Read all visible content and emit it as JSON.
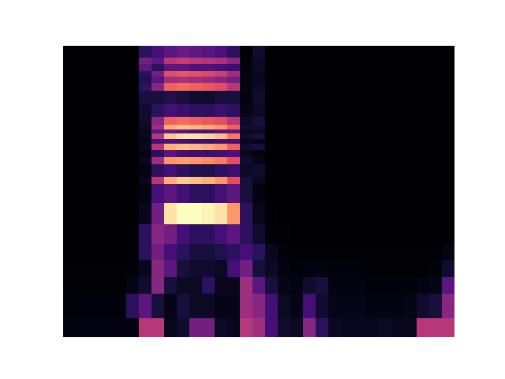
{
  "chart_data": {
    "type": "heatmap",
    "log": "y",
    "tick_labels": false,
    "xlim": [
      0,
      31
    ],
    "ylim": [
      1,
      440
    ],
    "y_edges": [
      1,
      1.5,
      2.5,
      3.5,
      5,
      7,
      10.5,
      16.5,
      24.5,
      28.5,
      37,
      43,
      50,
      57,
      63,
      70,
      76,
      84,
      100,
      130,
      170,
      200,
      230,
      260,
      300,
      340,
      440
    ],
    "cells": [
      [
        3,
        3,
        3,
        3,
        3,
        3,
        45,
        45,
        5,
        8,
        30,
        30,
        6,
        5,
        45,
        40,
        20,
        8,
        6,
        35,
        15,
        6,
        5,
        5,
        5,
        6,
        5,
        5,
        45,
        45,
        45
      ],
      [
        2,
        2,
        2,
        2,
        2,
        15,
        25,
        10,
        4,
        10,
        6,
        6,
        4,
        4,
        40,
        35,
        20,
        6,
        4,
        20,
        8,
        4,
        4,
        4,
        3,
        3,
        3,
        4,
        8,
        10,
        35
      ],
      [
        1,
        1,
        1,
        1,
        1,
        4,
        8,
        35,
        10,
        6,
        6,
        15,
        5,
        5,
        40,
        25,
        10,
        4,
        3,
        8,
        10,
        3,
        3,
        3,
        2,
        2,
        2,
        2,
        3,
        4,
        25
      ],
      [
        1,
        1,
        1,
        1,
        1,
        2,
        5,
        35,
        25,
        10,
        8,
        8,
        6,
        20,
        30,
        10,
        6,
        3,
        2,
        3,
        3,
        2,
        2,
        2,
        1,
        1,
        1,
        1,
        1,
        2,
        8
      ],
      [
        0,
        0,
        0,
        0,
        0,
        1,
        15,
        30,
        20,
        15,
        10,
        10,
        12,
        15,
        20,
        15,
        5,
        2,
        1,
        1,
        1,
        1,
        1,
        1,
        1,
        1,
        1,
        1,
        1,
        1,
        3
      ],
      [
        0,
        0,
        0,
        0,
        0,
        1,
        15,
        35,
        30,
        20,
        15,
        15,
        20,
        25,
        15,
        8,
        2,
        1,
        0,
        0,
        0,
        0,
        0,
        0,
        0,
        0,
        0,
        0,
        0,
        0,
        0
      ],
      [
        0,
        0,
        0,
        0,
        0,
        0,
        5,
        30,
        85,
        90,
        90,
        88,
        85,
        70,
        15,
        5,
        1,
        0,
        0,
        0,
        0,
        0,
        0,
        0,
        0,
        0,
        0,
        0,
        0,
        0,
        0
      ],
      [
        0,
        0,
        0,
        0,
        0,
        0,
        3,
        20,
        25,
        20,
        15,
        15,
        20,
        25,
        10,
        3,
        0,
        0,
        0,
        0,
        0,
        0,
        0,
        0,
        0,
        0,
        0,
        0,
        0,
        0,
        0
      ],
      [
        0,
        0,
        0,
        0,
        0,
        0,
        5,
        45,
        75,
        80,
        78,
        75,
        70,
        55,
        10,
        5,
        0,
        0,
        0,
        0,
        0,
        0,
        0,
        0,
        0,
        0,
        0,
        0,
        0,
        0,
        0
      ],
      [
        0,
        0,
        0,
        0,
        0,
        0,
        3,
        15,
        20,
        15,
        12,
        12,
        15,
        18,
        6,
        8,
        0,
        0,
        0,
        0,
        0,
        0,
        0,
        0,
        0,
        0,
        0,
        0,
        0,
        0,
        0
      ],
      [
        0,
        0,
        0,
        0,
        0,
        0,
        5,
        40,
        70,
        72,
        70,
        68,
        65,
        55,
        8,
        4,
        0,
        0,
        0,
        0,
        0,
        0,
        0,
        0,
        0,
        0,
        0,
        0,
        0,
        0,
        0
      ],
      [
        0,
        0,
        0,
        0,
        0,
        0,
        3,
        15,
        25,
        20,
        18,
        18,
        20,
        22,
        5,
        3,
        0,
        0,
        0,
        0,
        0,
        0,
        0,
        0,
        0,
        0,
        0,
        0,
        0,
        0,
        0
      ],
      [
        0,
        0,
        0,
        0,
        0,
        0,
        5,
        45,
        75,
        78,
        76,
        74,
        70,
        60,
        8,
        10,
        0,
        0,
        0,
        0,
        0,
        0,
        0,
        0,
        0,
        0,
        0,
        0,
        0,
        0,
        0
      ],
      [
        0,
        0,
        0,
        0,
        0,
        0,
        4,
        20,
        22,
        20,
        18,
        18,
        20,
        20,
        5,
        4,
        0,
        0,
        0,
        0,
        0,
        0,
        0,
        0,
        0,
        0,
        0,
        0,
        0,
        0,
        0
      ],
      [
        0,
        0,
        0,
        0,
        0,
        0,
        5,
        45,
        80,
        85,
        85,
        82,
        78,
        65,
        8,
        10,
        0,
        0,
        0,
        0,
        0,
        0,
        0,
        0,
        0,
        0,
        0,
        0,
        0,
        0,
        0
      ],
      [
        0,
        0,
        0,
        0,
        0,
        0,
        5,
        25,
        28,
        25,
        22,
        22,
        25,
        25,
        5,
        6,
        0,
        0,
        0,
        0,
        0,
        0,
        0,
        0,
        0,
        0,
        0,
        0,
        0,
        0,
        0
      ],
      [
        0,
        0,
        0,
        0,
        0,
        0,
        6,
        40,
        75,
        78,
        76,
        74,
        70,
        60,
        8,
        8,
        0,
        0,
        0,
        0,
        0,
        0,
        0,
        0,
        0,
        0,
        0,
        0,
        0,
        0,
        0
      ],
      [
        0,
        0,
        0,
        0,
        0,
        0,
        8,
        35,
        60,
        62,
        60,
        58,
        55,
        45,
        6,
        10,
        0,
        0,
        0,
        0,
        0,
        0,
        0,
        0,
        0,
        0,
        0,
        0,
        0,
        0,
        0
      ],
      [
        0,
        0,
        0,
        0,
        0,
        0,
        8,
        15,
        20,
        18,
        15,
        15,
        18,
        15,
        4,
        6,
        0,
        0,
        0,
        0,
        0,
        0,
        0,
        0,
        0,
        0,
        0,
        0,
        0,
        0,
        0
      ],
      [
        0,
        0,
        0,
        0,
        0,
        0,
        10,
        10,
        12,
        10,
        8,
        8,
        10,
        10,
        3,
        8,
        0,
        0,
        0,
        0,
        0,
        0,
        0,
        0,
        0,
        0,
        0,
        0,
        0,
        0,
        0
      ],
      [
        0,
        0,
        0,
        0,
        0,
        0,
        15,
        35,
        60,
        62,
        60,
        58,
        55,
        45,
        4,
        6,
        0,
        0,
        0,
        0,
        0,
        0,
        0,
        0,
        0,
        0,
        0,
        0,
        0,
        0,
        0
      ],
      [
        0,
        0,
        0,
        0,
        0,
        0,
        12,
        25,
        40,
        42,
        40,
        38,
        35,
        30,
        3,
        5,
        0,
        0,
        0,
        0,
        0,
        0,
        0,
        0,
        0,
        0,
        0,
        0,
        0,
        0,
        0
      ],
      [
        0,
        0,
        0,
        0,
        0,
        0,
        15,
        30,
        55,
        58,
        56,
        54,
        50,
        40,
        3,
        5,
        0,
        0,
        0,
        0,
        0,
        0,
        0,
        0,
        0,
        0,
        0,
        0,
        0,
        0,
        0
      ],
      [
        0,
        0,
        0,
        0,
        0,
        0,
        25,
        15,
        25,
        25,
        22,
        22,
        20,
        18,
        2,
        6,
        0,
        0,
        0,
        0,
        0,
        0,
        0,
        0,
        0,
        0,
        0,
        0,
        0,
        0,
        0
      ],
      [
        0,
        0,
        0,
        0,
        0,
        0,
        30,
        25,
        45,
        48,
        46,
        44,
        42,
        35,
        2,
        6,
        0,
        0,
        0,
        0,
        0,
        0,
        0,
        0,
        0,
        0,
        0,
        0,
        0,
        0,
        0
      ],
      [
        0,
        0,
        0,
        0,
        0,
        0,
        15,
        20,
        25,
        28,
        26,
        24,
        22,
        15,
        1,
        8,
        0,
        0,
        0,
        0,
        0,
        0,
        0,
        0,
        0,
        0,
        0,
        0,
        0,
        0,
        0
      ]
    ]
  }
}
